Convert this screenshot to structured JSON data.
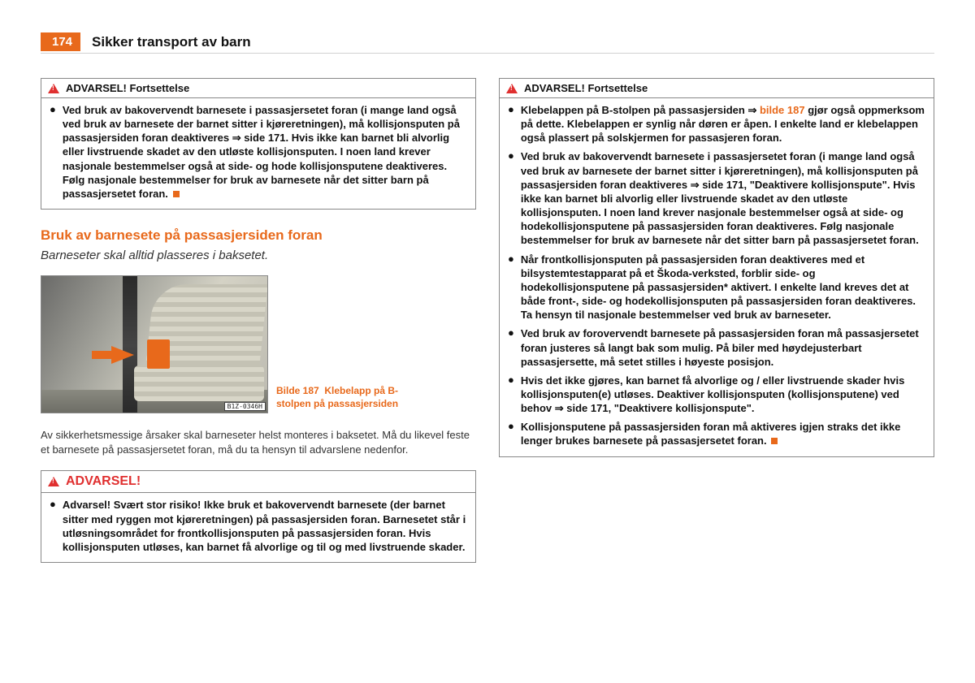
{
  "page_number": "174",
  "section_title": "Sikker transport av barn",
  "colors": {
    "accent": "#e8691b",
    "warning_red": "#e03030",
    "text": "#111111",
    "border": "#888888",
    "background": "#ffffff"
  },
  "left_column": {
    "warning1": {
      "header": "ADVARSEL! Fortsettelse",
      "item1": "Ved bruk av bakovervendt barnesete i passasjersetet foran (i mange land også ved bruk av barnesete der barnet sitter i kjøreretningen), må kollisjonsputen på passasjersiden foran deaktiveres ⇒ side 171. Hvis ikke kan barnet bli alvorlig eller livstruende skadet av den utløste kollisjonsputen. I noen land krever nasjonale bestemmelser også at side- og hode kollisjonsputene deaktiveres. Følg nasjonale bestemmelser for bruk av barnesete når det sitter barn på passasjersetet foran."
    },
    "subsection_heading": "Bruk av barnesete på passasjersiden foran",
    "subsection_subtitle": "Barneseter skal alltid plasseres i baksetet.",
    "figure": {
      "ref_code": "B1Z-0346H",
      "caption_prefix": "Bilde 187",
      "caption_text": "Klebelapp på B-stolpen på passasjersiden"
    },
    "para1": "Av sikkerhetsmessige årsaker skal barneseter helst monteres i baksetet. Må du likevel feste et barnesete på passasjersetet foran, må du ta hensyn til advarslene nedenfor.",
    "warning2": {
      "header": "ADVARSEL!",
      "item1": "Advarsel! Svært stor risiko! Ikke bruk et bakovervendt barnesete (der barnet sitter med ryggen mot kjøreretningen) på passasjersiden foran. Barnesetet står i utløsningsområdet for frontkollisjonsputen på passasjersiden foran. Hvis kollisjonsputen utløses, kan barnet få alvorlige og til og med livstruende skader."
    }
  },
  "right_column": {
    "warning1": {
      "header": "ADVARSEL! Fortsettelse",
      "item1_pre": "Klebelappen på B-stolpen på passasjersiden ⇒ ",
      "item1_bilde": "bilde 187",
      "item1_post": " gjør også oppmerksom på dette. Klebelappen er synlig når døren er åpen. I enkelte land er klebelappen også plassert på solskjermen for passasjeren foran.",
      "item2": "Ved bruk av bakovervendt barnesete i passasjersetet foran (i mange land også ved bruk av barnesete der barnet sitter i kjøreretningen), må kollisjonsputen på passasjersiden foran deaktiveres ⇒ side 171, \"Deaktivere kollisjonspute\". Hvis ikke kan barnet bli alvorlig eller livstruende skadet av den utløste kollisjonsputen. I noen land krever nasjonale bestemmelser også at side- og hodekollisjonsputene på passasjersiden foran deaktiveres. Følg nasjonale bestemmelser for bruk av barnesete når det sitter barn på passasjersetet foran.",
      "item3": "Når frontkollisjonsputen på passasjersiden foran deaktiveres med et bilsystemtestapparat på et Škoda-verksted, forblir side- og hodekollisjonsputene på passasjersiden* aktivert. I enkelte land kreves det at både front-, side- og hodekollisjonsputen på passasjersiden foran deaktiveres. Ta hensyn til nasjonale bestemmelser ved bruk av barneseter.",
      "item4": "Ved bruk av forovervendt barnesete på passasjersiden foran må passasjersetet foran justeres så langt bak som mulig. På biler med høydejusterbart passasjersette, må setet stilles i høyeste posisjon.",
      "item5": "Hvis det ikke gjøres, kan barnet få alvorlige og / eller livstruende skader hvis kollisjonsputen(e) utløses. Deaktiver kollisjonsputen (kollisjonsputene) ved behov ⇒ side 171, \"Deaktivere kollisjonspute\".",
      "item6": "Kollisjonsputene på passasjersiden foran må aktiveres igjen straks det ikke lenger brukes barnesete på passasjersetet foran."
    }
  }
}
